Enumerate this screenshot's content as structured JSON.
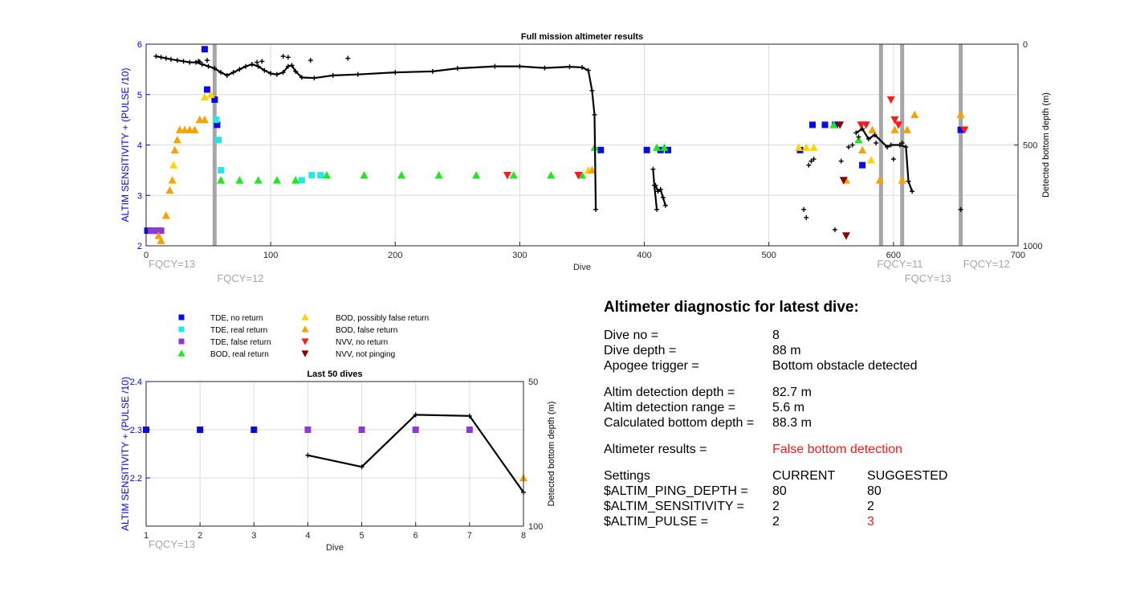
{
  "chart_data": [
    {
      "id": "full",
      "type": "scatter",
      "title": "Full mission altimeter results",
      "xlabel": "Dive",
      "ylabel": "ALTIM SENSITIVITY + (PULSE /10)",
      "y2label": "Detected bottom depth (m)",
      "xlim": [
        0,
        700
      ],
      "ylim": [
        2,
        6
      ],
      "y2lim": [
        0,
        1000
      ],
      "y2_reversed": true,
      "xticks": [
        0,
        100,
        200,
        300,
        400,
        500,
        600,
        700
      ],
      "yticks": [
        2,
        3,
        4,
        5,
        6
      ],
      "y2ticks": [
        0,
        500,
        1000
      ],
      "grid": true,
      "fqcy_markers": [
        {
          "x": 55,
          "label": "FQCY=12"
        },
        {
          "x": 590,
          "label": "FQCY=11"
        },
        {
          "x": 607,
          "label": "FQCY=13"
        },
        {
          "x": 654,
          "label": "FQCY=12"
        }
      ],
      "fqcy_start_label": "FQCY=13",
      "series": [
        {
          "name": "TDE, no return",
          "marker": "square",
          "color": "#0a0ae6",
          "points": [
            [
              1,
              2.3
            ],
            [
              47,
              5.9
            ],
            [
              49,
              5.1
            ],
            [
              55,
              4.9
            ],
            [
              57,
              4.4
            ],
            [
              365,
              3.9
            ],
            [
              402,
              3.9
            ],
            [
              413,
              3.9
            ],
            [
              419,
              3.9
            ],
            [
              525,
              3.9
            ],
            [
              535,
              4.4
            ],
            [
              545,
              4.4
            ],
            [
              553,
              4.4
            ],
            [
              575,
              3.6
            ],
            [
              654,
              4.3
            ]
          ]
        },
        {
          "name": "TDE, real return",
          "marker": "square",
          "color": "#22e8e8",
          "points": [
            [
              56,
              4.5
            ],
            [
              58,
              4.1
            ],
            [
              60,
              3.5
            ],
            [
              125,
              3.3
            ],
            [
              133,
              3.4
            ],
            [
              140,
              3.4
            ]
          ]
        },
        {
          "name": "TDE, false return",
          "marker": "square",
          "color": "#8b3ad6",
          "points": [
            [
              4,
              2.3
            ],
            [
              6,
              2.3
            ],
            [
              8,
              2.3
            ],
            [
              10,
              2.3
            ],
            [
              12,
              2.3
            ]
          ]
        },
        {
          "name": "BOD, real return",
          "marker": "triangle-up",
          "color": "#1ee81e",
          "points": [
            [
              60,
              3.3
            ],
            [
              75,
              3.3
            ],
            [
              90,
              3.3
            ],
            [
              105,
              3.3
            ],
            [
              120,
              3.3
            ],
            [
              145,
              3.4
            ],
            [
              175,
              3.4
            ],
            [
              205,
              3.4
            ],
            [
              235,
              3.4
            ],
            [
              265,
              3.4
            ],
            [
              295,
              3.4
            ],
            [
              325,
              3.4
            ],
            [
              350,
              3.4
            ],
            [
              360,
              3.95
            ],
            [
              410,
              3.95
            ],
            [
              416,
              3.95
            ],
            [
              552,
              4.4
            ],
            [
              572,
              4.1
            ]
          ]
        },
        {
          "name": "BOD, possibly false return",
          "marker": "triangle-up",
          "color": "#ffd500",
          "points": [
            [
              22,
              3.6
            ],
            [
              47,
              4.95
            ],
            [
              52,
              5.0
            ],
            [
              355,
              3.5
            ],
            [
              524,
              3.95
            ],
            [
              530,
              3.95
            ],
            [
              536,
              3.95
            ],
            [
              582,
              3.7
            ]
          ]
        },
        {
          "name": "BOD, false return",
          "marker": "triangle-up",
          "color": "#f5a300",
          "points": [
            [
              10,
              2.2
            ],
            [
              12,
              2.1
            ],
            [
              16,
              2.6
            ],
            [
              19,
              3.1
            ],
            [
              21,
              3.3
            ],
            [
              23,
              3.9
            ],
            [
              25,
              4.1
            ],
            [
              27,
              4.3
            ],
            [
              31,
              4.3
            ],
            [
              35,
              4.3
            ],
            [
              39,
              4.3
            ],
            [
              43,
              4.5
            ],
            [
              47,
              4.5
            ],
            [
              358,
              3.5
            ],
            [
              562,
              3.3
            ],
            [
              575,
              3.9
            ],
            [
              583,
              4.3
            ],
            [
              589,
              3.3
            ],
            [
              601,
              4.3
            ],
            [
              607,
              3.3
            ],
            [
              611,
              4.3
            ],
            [
              617,
              4.6
            ],
            [
              654,
              4.6
            ]
          ]
        },
        {
          "name": "NVV, no return",
          "marker": "triangle-down",
          "color": "#ff1a1a",
          "points": [
            [
              290,
              3.4
            ],
            [
              347,
              3.4
            ],
            [
              574,
              4.4
            ],
            [
              578,
              4.4
            ],
            [
              598,
              4.9
            ],
            [
              601,
              4.5
            ],
            [
              604,
              4.4
            ],
            [
              657,
              4.3
            ]
          ]
        },
        {
          "name": "NVV, not pinging",
          "marker": "triangle-down",
          "color": "#8b0000",
          "points": [
            [
              557,
              4.4
            ],
            [
              560,
              3.3
            ],
            [
              562,
              2.2
            ]
          ]
        }
      ],
      "depth_series": [
        {
          "points": [
            [
              8,
              60
            ],
            [
              12,
              65
            ],
            [
              16,
              70
            ],
            [
              20,
              75
            ],
            [
              25,
              80
            ],
            [
              30,
              85
            ],
            [
              35,
              90
            ],
            [
              40,
              90
            ],
            [
              45,
              100
            ],
            [
              50,
              110
            ],
            [
              55,
              120
            ],
            [
              60,
              140
            ],
            [
              65,
              155
            ],
            [
              70,
              140
            ],
            [
              75,
              125
            ],
            [
              80,
              110
            ],
            [
              85,
              100
            ],
            [
              90,
              110
            ],
            [
              95,
              130
            ],
            [
              100,
              145
            ],
            [
              105,
              150
            ],
            [
              110,
              140
            ],
            [
              114,
              110
            ],
            [
              117,
              105
            ],
            [
              120,
              135
            ],
            [
              125,
              165
            ],
            [
              135,
              168
            ],
            [
              150,
              155
            ],
            [
              170,
              150
            ],
            [
              200,
              140
            ],
            [
              230,
              135
            ],
            [
              250,
              120
            ],
            [
              280,
              110
            ],
            [
              300,
              110
            ],
            [
              320,
              118
            ],
            [
              340,
              112
            ],
            [
              350,
              115
            ],
            [
              355,
              130
            ],
            [
              358,
              230
            ],
            [
              360,
              350
            ],
            [
              361,
              820
            ]
          ]
        },
        {
          "points": [
            [
              407,
              620
            ],
            [
              408,
              700
            ],
            [
              410,
              820
            ]
          ]
        },
        {
          "points": [
            [
              409,
              700
            ],
            [
              411,
              730
            ],
            [
              413,
              720
            ],
            [
              415,
              760
            ],
            [
              417,
              800
            ]
          ]
        },
        {
          "points": [
            [
              570,
              440
            ],
            [
              575,
              420
            ],
            [
              580,
              470
            ],
            [
              585,
              450
            ],
            [
              595,
              510
            ],
            [
              598,
              500
            ],
            [
              605,
              500
            ],
            [
              610,
              510
            ],
            [
              612,
              680
            ],
            [
              615,
              730
            ]
          ]
        }
      ],
      "depth_points": [
        [
          42,
          85
        ],
        [
          43,
          88
        ],
        [
          49,
          80
        ],
        [
          89,
          90
        ],
        [
          93,
          85
        ],
        [
          110,
          60
        ],
        [
          114,
          65
        ],
        [
          132,
          80
        ],
        [
          162,
          70
        ],
        [
          528,
          820
        ],
        [
          530,
          860
        ],
        [
          532,
          600
        ],
        [
          534,
          580
        ],
        [
          536,
          570
        ],
        [
          553,
          920
        ],
        [
          558,
          580
        ],
        [
          564,
          510
        ],
        [
          567,
          500
        ],
        [
          572,
          460
        ],
        [
          586,
          490
        ],
        [
          600,
          570
        ],
        [
          607,
          490
        ],
        [
          654,
          820
        ]
      ]
    },
    {
      "id": "last50",
      "type": "scatter",
      "title": "Last 50 dives",
      "xlabel": "Dive",
      "ylabel": "ALTIM SENSITIVITY + (PULSE /10)",
      "y2label": "Detected bottom depth (m)",
      "xlim": [
        1,
        8
      ],
      "ylim": [
        2.1,
        2.4
      ],
      "y2lim": [
        50,
        100
      ],
      "y2_reversed": true,
      "xticks": [
        1,
        2,
        3,
        4,
        5,
        6,
        7,
        8
      ],
      "yticks": [
        2.2,
        2.3,
        2.4
      ],
      "y2ticks": [
        50,
        100
      ],
      "grid": true,
      "fqcy_start_label": "FQCY=13",
      "series": [
        {
          "name": "TDE, no return",
          "marker": "square",
          "color": "#0a0ae6",
          "points": [
            [
              1,
              2.3
            ],
            [
              2,
              2.3
            ],
            [
              3,
              2.3
            ]
          ]
        },
        {
          "name": "TDE, false return",
          "marker": "square",
          "color": "#8b3ad6",
          "points": [
            [
              4,
              2.3
            ],
            [
              5,
              2.3
            ],
            [
              6,
              2.3
            ],
            [
              7,
              2.3
            ]
          ]
        },
        {
          "name": "BOD, false return",
          "marker": "triangle-up",
          "color": "#f5a300",
          "points": [
            [
              8,
              2.2
            ]
          ]
        }
      ],
      "depth_series": [
        {
          "points": [
            [
              4,
              75.5
            ],
            [
              5,
              79.5
            ],
            [
              6,
              61.5
            ],
            [
              7,
              61.9
            ],
            [
              8,
              88.3
            ]
          ]
        }
      ],
      "depth_points": []
    }
  ],
  "legend": [
    {
      "label": "TDE, no return",
      "marker": "square",
      "color": "#0a0ae6"
    },
    {
      "label": "TDE, real return",
      "marker": "square",
      "color": "#22e8e8"
    },
    {
      "label": "TDE, false return",
      "marker": "square",
      "color": "#8b3ad6"
    },
    {
      "label": "BOD, real return",
      "marker": "triangle-up",
      "color": "#1ee81e"
    },
    {
      "label": "BOD, possibly false return",
      "marker": "triangle-up",
      "color": "#ffd500"
    },
    {
      "label": "BOD, false return",
      "marker": "triangle-up",
      "color": "#f5a300"
    },
    {
      "label": "NVV, no return",
      "marker": "triangle-down",
      "color": "#ff1a1a"
    },
    {
      "label": "NVV, not pinging",
      "marker": "triangle-down",
      "color": "#8b0000"
    }
  ],
  "diagnostic": {
    "title": "Altimeter diagnostic for latest dive:",
    "dive_no_label": "Dive no =",
    "dive_no": "8",
    "dive_depth_label": "Dive depth =",
    "dive_depth": "88 m",
    "apogee_label": "Apogee trigger =",
    "apogee": "Bottom obstacle detected",
    "det_depth_label": "Altim detection depth =",
    "det_depth": "82.7 m",
    "det_range_label": "Altim detection range =",
    "det_range": "5.6 m",
    "calc_depth_label": "Calculated bottom depth =",
    "calc_depth": "88.3 m",
    "results_label": "Altimeter results =",
    "results": "False bottom detection",
    "settings_label": "Settings",
    "current_label": "CURRENT",
    "suggested_label": "SUGGESTED",
    "ping_label": "$ALTIM_PING_DEPTH =",
    "ping_current": "80",
    "ping_suggested": "80",
    "sens_label": "$ALTIM_SENSITIVITY =",
    "sens_current": "2",
    "sens_suggested": "2",
    "pulse_label": "$ALTIM_PULSE =",
    "pulse_current": "2",
    "pulse_suggested": "3"
  }
}
